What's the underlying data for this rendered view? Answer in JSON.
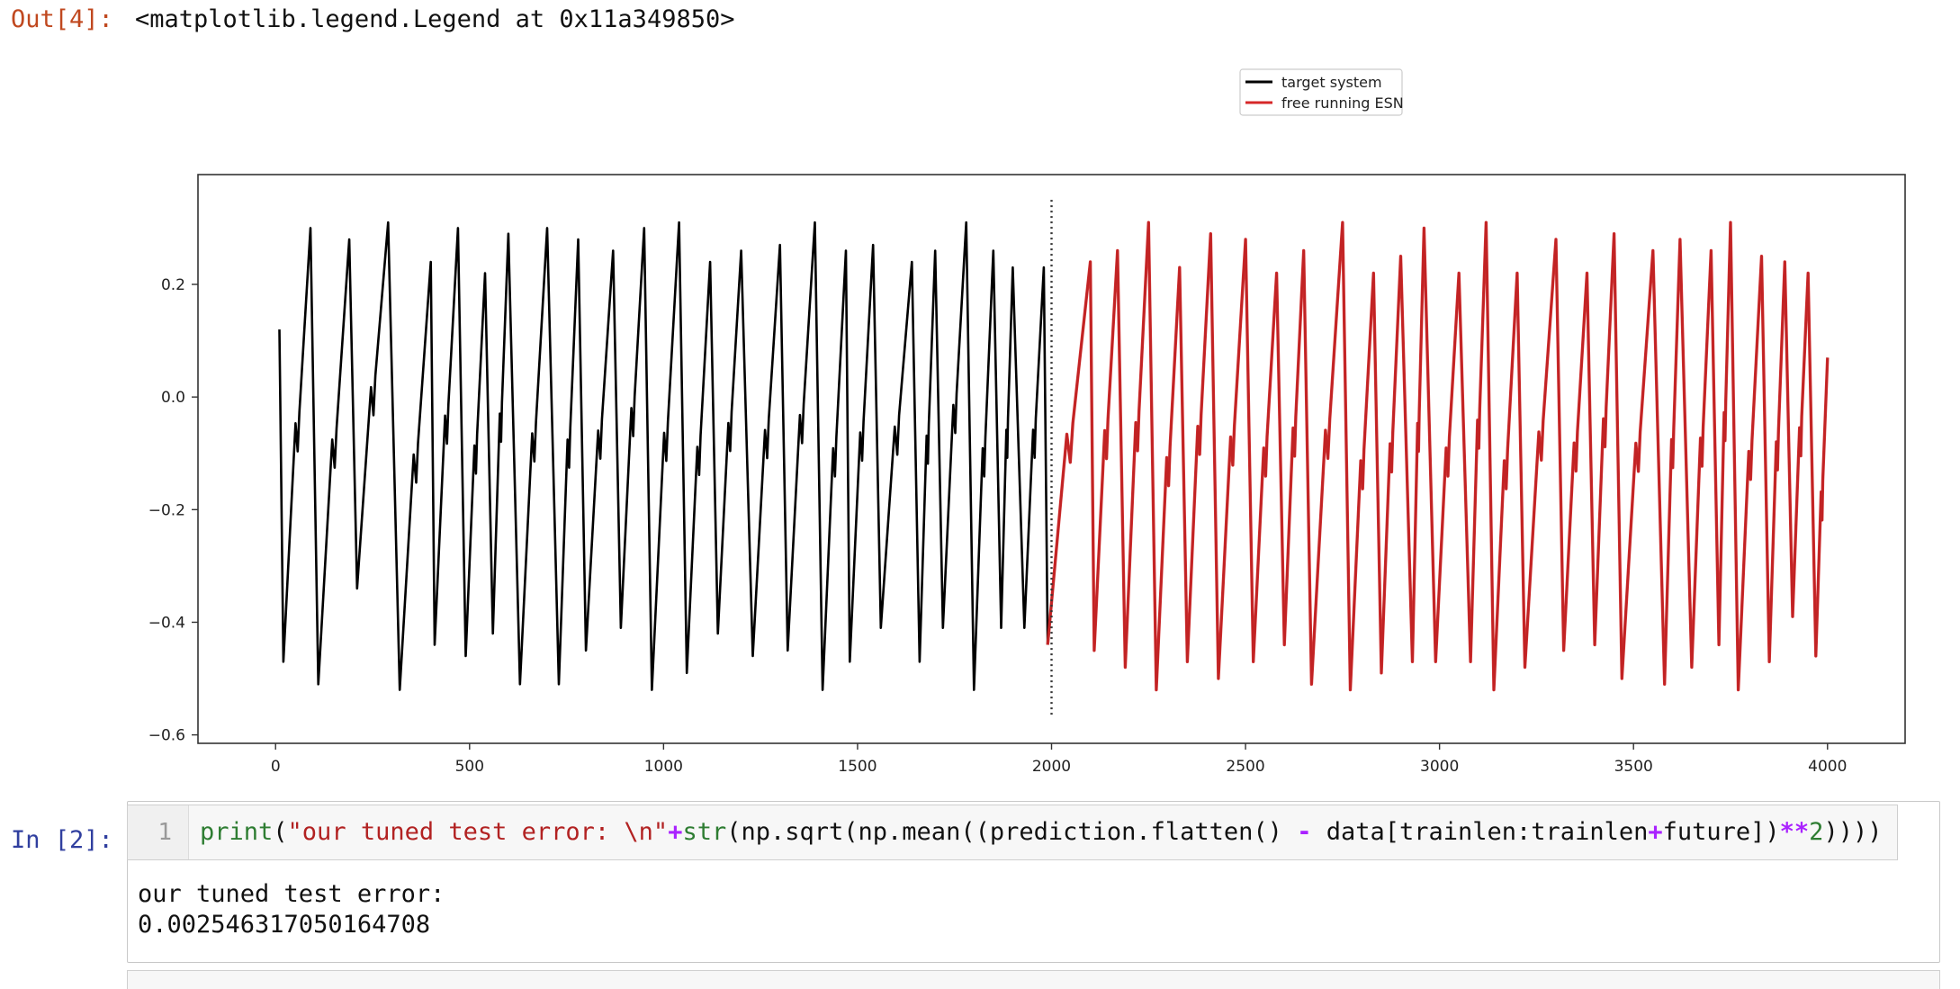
{
  "out_cell": {
    "prompt": "Out[4]:",
    "text": "<matplotlib.legend.Legend at 0x11a349850>"
  },
  "chart_data": {
    "type": "line",
    "xlim": [
      -200,
      4200
    ],
    "ylim": [
      -0.615,
      0.395
    ],
    "xticks": [
      0,
      500,
      1000,
      1500,
      2000,
      2500,
      3000,
      3500,
      4000
    ],
    "xtick_labels": [
      "0",
      "500",
      "1000",
      "1500",
      "2000",
      "2500",
      "3000",
      "3500",
      "4000"
    ],
    "yticks": [
      0.2,
      0.0,
      -0.2,
      -0.4,
      -0.6
    ],
    "ytick_labels": [
      "0.2",
      "0.0",
      "−0.2",
      "−0.4",
      "−0.6"
    ],
    "legend": {
      "placement": "top-center",
      "entries": [
        "target system",
        "free running ESN"
      ]
    },
    "series": [
      {
        "name": "target system",
        "color": "#000000",
        "x_range": [
          0,
          4000
        ],
        "peaks": [
          [
            10,
            0.12
          ],
          [
            90,
            0.3
          ],
          [
            190,
            0.28
          ],
          [
            290,
            0.31
          ],
          [
            400,
            0.24
          ],
          [
            470,
            0.3
          ],
          [
            540,
            0.22
          ],
          [
            600,
            0.29
          ],
          [
            700,
            0.3
          ],
          [
            780,
            0.28
          ],
          [
            870,
            0.26
          ],
          [
            950,
            0.3
          ],
          [
            1040,
            0.31
          ],
          [
            1120,
            0.24
          ],
          [
            1200,
            0.26
          ],
          [
            1300,
            0.27
          ],
          [
            1390,
            0.31
          ],
          [
            1470,
            0.26
          ],
          [
            1540,
            0.27
          ],
          [
            1640,
            0.24
          ],
          [
            1700,
            0.26
          ],
          [
            1780,
            0.31
          ],
          [
            1850,
            0.26
          ],
          [
            1900,
            0.23
          ],
          [
            1980,
            0.23
          ],
          [
            2100,
            0.24
          ],
          [
            2170,
            0.26
          ],
          [
            2250,
            0.31
          ],
          [
            2330,
            0.23
          ],
          [
            2410,
            0.29
          ],
          [
            2500,
            0.28
          ],
          [
            2580,
            0.22
          ],
          [
            2650,
            0.26
          ],
          [
            2750,
            0.31
          ],
          [
            2830,
            0.22
          ],
          [
            2900,
            0.25
          ],
          [
            2960,
            0.3
          ],
          [
            3050,
            0.22
          ],
          [
            3120,
            0.31
          ],
          [
            3200,
            0.22
          ],
          [
            3300,
            0.28
          ],
          [
            3380,
            0.22
          ],
          [
            3450,
            0.29
          ],
          [
            3550,
            0.26
          ],
          [
            3620,
            0.28
          ],
          [
            3700,
            0.26
          ],
          [
            3750,
            0.31
          ],
          [
            3830,
            0.25
          ],
          [
            3890,
            0.24
          ],
          [
            3950,
            0.22
          ],
          [
            4000,
            0.07
          ]
        ],
        "troughs": [
          [
            20,
            -0.47
          ],
          [
            110,
            -0.51
          ],
          [
            210,
            -0.34
          ],
          [
            320,
            -0.52
          ],
          [
            410,
            -0.44
          ],
          [
            490,
            -0.46
          ],
          [
            560,
            -0.42
          ],
          [
            630,
            -0.51
          ],
          [
            730,
            -0.51
          ],
          [
            800,
            -0.45
          ],
          [
            890,
            -0.41
          ],
          [
            970,
            -0.52
          ],
          [
            1060,
            -0.49
          ],
          [
            1140,
            -0.42
          ],
          [
            1230,
            -0.46
          ],
          [
            1320,
            -0.45
          ],
          [
            1410,
            -0.52
          ],
          [
            1480,
            -0.47
          ],
          [
            1560,
            -0.41
          ],
          [
            1660,
            -0.47
          ],
          [
            1720,
            -0.41
          ],
          [
            1800,
            -0.52
          ],
          [
            1870,
            -0.41
          ],
          [
            1930,
            -0.41
          ],
          [
            1990,
            -0.44
          ],
          [
            2110,
            -0.45
          ],
          [
            2190,
            -0.48
          ],
          [
            2270,
            -0.52
          ],
          [
            2350,
            -0.47
          ],
          [
            2430,
            -0.5
          ],
          [
            2520,
            -0.47
          ],
          [
            2600,
            -0.44
          ],
          [
            2670,
            -0.51
          ],
          [
            2770,
            -0.52
          ],
          [
            2850,
            -0.49
          ],
          [
            2930,
            -0.47
          ],
          [
            2990,
            -0.47
          ],
          [
            3080,
            -0.47
          ],
          [
            3140,
            -0.52
          ],
          [
            3220,
            -0.48
          ],
          [
            3320,
            -0.45
          ],
          [
            3400,
            -0.44
          ],
          [
            3470,
            -0.5
          ],
          [
            3580,
            -0.51
          ],
          [
            3650,
            -0.48
          ],
          [
            3720,
            -0.44
          ],
          [
            3770,
            -0.52
          ],
          [
            3850,
            -0.47
          ],
          [
            3910,
            -0.39
          ],
          [
            3970,
            -0.46
          ]
        ]
      },
      {
        "name": "free running ESN",
        "color": "#d62728",
        "x_range": [
          2000,
          4000
        ]
      }
    ],
    "vline": {
      "x": 2000,
      "style": "dotted",
      "ymin": -0.57,
      "ymax": 0.35
    }
  },
  "in_cell": {
    "prompt": "In [2]:",
    "line_number": "1",
    "code_tokens": [
      {
        "t": "print",
        "c": "tk-builtin"
      },
      {
        "t": "(",
        "c": ""
      },
      {
        "t": "\"our tuned test error: \\n\"",
        "c": "tk-str"
      },
      {
        "t": "+",
        "c": "tk-op"
      },
      {
        "t": "str",
        "c": "tk-builtin"
      },
      {
        "t": "(np.sqrt(np.mean((prediction.flatten() ",
        "c": ""
      },
      {
        "t": "-",
        "c": "tk-op"
      },
      {
        "t": " data[trainlen:trainlen",
        "c": ""
      },
      {
        "t": "+",
        "c": "tk-op"
      },
      {
        "t": "future])",
        "c": ""
      },
      {
        "t": "**",
        "c": "tk-op"
      },
      {
        "t": "2",
        "c": "tk-num"
      },
      {
        "t": "))))",
        "c": ""
      }
    ],
    "output_lines": [
      "our tuned test error:",
      "0.002546317050164708"
    ]
  }
}
